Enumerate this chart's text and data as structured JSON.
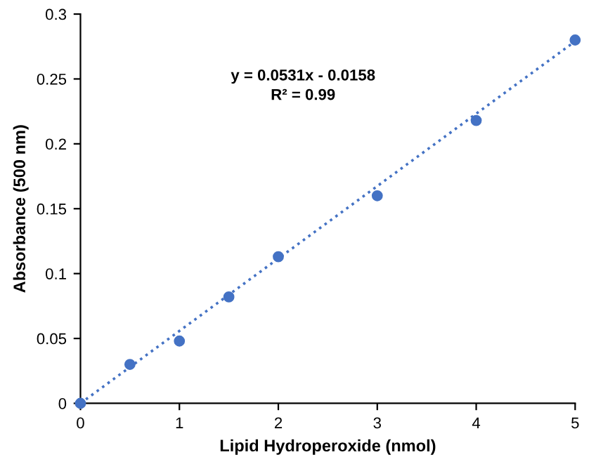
{
  "chart_data": {
    "type": "scatter",
    "xlabel": "Lipid Hydroperoxide (nmol)",
    "ylabel": "Absorbance (500 nm)",
    "annotations": [
      "y = 0.0531x - 0.0158",
      "R² = 0.99"
    ],
    "series": [
      {
        "color": "#4472c4",
        "x": [
          0,
          0.5,
          1,
          1.5,
          2,
          3,
          4,
          5
        ],
        "values": [
          0,
          0.03,
          0.048,
          0.082,
          0.113,
          0.16,
          0.218,
          0.28
        ],
        "marker": "circle"
      },
      {
        "type": "line",
        "color": "#4472c4",
        "x": [
          0,
          5
        ],
        "values": [
          0,
          0.279
        ],
        "line_style": "dotted"
      }
    ],
    "xlim": [
      0,
      5
    ],
    "xticks": [
      0,
      1,
      2,
      3,
      4,
      5
    ],
    "ylim": [
      0,
      0.3
    ],
    "yticks": [
      0,
      0.05,
      0.1,
      0.15,
      0.2,
      0.25,
      0.3
    ],
    "grid": false
  }
}
